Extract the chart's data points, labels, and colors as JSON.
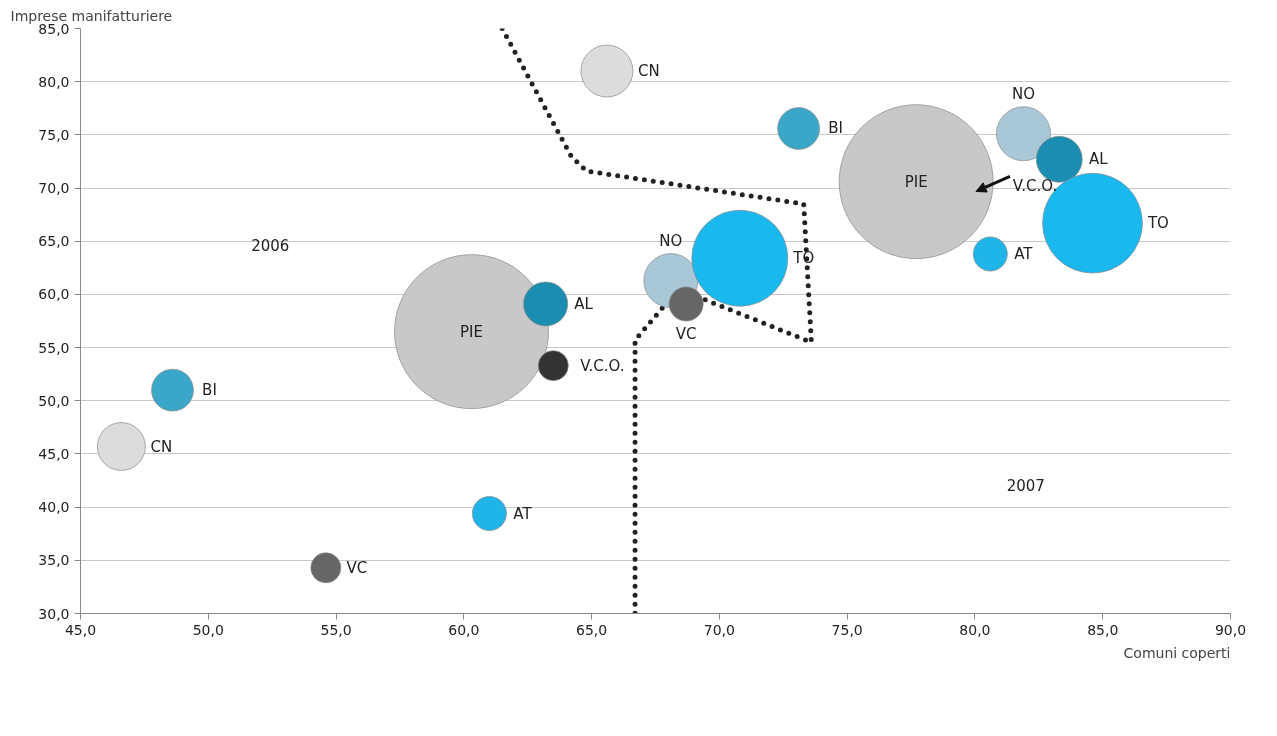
{
  "chart_data": {
    "type": "bubble",
    "xlabel": "Comuni coperti",
    "ylabel": "Imprese manifatturiere",
    "xlim": [
      45,
      90
    ],
    "ylim": [
      30,
      85
    ],
    "xticks": [
      {
        "value": 45,
        "label": "45,0"
      },
      {
        "value": 50,
        "label": "50,0"
      },
      {
        "value": 55,
        "label": "55,0"
      },
      {
        "value": 60,
        "label": "60,0"
      },
      {
        "value": 65,
        "label": "65,0"
      },
      {
        "value": 70,
        "label": "70,0"
      },
      {
        "value": 75,
        "label": "75,0"
      },
      {
        "value": 80,
        "label": "80,0"
      },
      {
        "value": 85,
        "label": "85,0"
      },
      {
        "value": 90,
        "label": "90,0"
      }
    ],
    "yticks": [
      {
        "value": 30,
        "label": "30,0"
      },
      {
        "value": 35,
        "label": "35,0"
      },
      {
        "value": 40,
        "label": "40,0"
      },
      {
        "value": 45,
        "label": "45,0"
      },
      {
        "value": 50,
        "label": "50,0"
      },
      {
        "value": 55,
        "label": "55,0"
      },
      {
        "value": 60,
        "label": "60,0"
      },
      {
        "value": 65,
        "label": "65,0"
      },
      {
        "value": 70,
        "label": "70,0"
      },
      {
        "value": 75,
        "label": "75,0"
      },
      {
        "value": 80,
        "label": "80,0"
      },
      {
        "value": 85,
        "label": "85,0"
      }
    ],
    "grid": "y",
    "annotations": [
      "2006",
      "2007",
      "V.C.O."
    ],
    "series": [
      {
        "type": "line",
        "color": "#222222",
        "line_style": "dotted",
        "x": [
          61.5,
          64.2,
          64.8,
          73.3,
          73.6,
          68.4,
          66.7,
          66.7
        ],
        "values": [
          85.0,
          73.0,
          71.6,
          68.5,
          55.5,
          60.5,
          55.7,
          30.0
        ]
      },
      {
        "x": [
          46.6,
          48.6,
          54.6,
          61.0,
          60.3,
          63.2,
          63.5,
          68.1,
          70.8
        ],
        "values": [
          45.7,
          51.0,
          34.3,
          39.4,
          56.5,
          59.1,
          53.3,
          61.3,
          63.4
        ],
        "sizes": [
          0.097,
          0.074,
          0.038,
          0.049,
          1,
          0.082,
          0.038,
          0.123,
          0.389
        ],
        "colors": [
          "#dcdcdc",
          "#3aa6c8",
          "#666666",
          "#1fb5e8",
          "#c8c8c8",
          "#1a8db0",
          "#333333",
          "#a8c8d8",
          "#19b8ee"
        ],
        "value_labels": [
          "CN",
          "BI",
          "VC",
          "AT",
          "PIE",
          "AL",
          "V.C.O.",
          "NO",
          "TO"
        ]
      },
      {
        "x": [
          65.6,
          73.1,
          77.7,
          81.9,
          83.3,
          84.6,
          80.6,
          68.7
        ],
        "values": [
          81.0,
          75.6,
          70.6,
          75.1,
          72.7,
          66.7,
          63.8,
          59.1
        ],
        "sizes": [
          0.114,
          0.074,
          1,
          0.123,
          0.089,
          0.42,
          0.049,
          0.049
        ],
        "colors": [
          "#dcdcdc",
          "#3aa6c8",
          "#c8c8c8",
          "#a8c8d8",
          "#1a8db0",
          "#19b8ee",
          "#1fb5e8",
          "#666666"
        ],
        "value_labels": [
          "CN",
          "BI",
          "PIE",
          "NO",
          "AL",
          "TO",
          "AT",
          "VC"
        ]
      }
    ]
  }
}
